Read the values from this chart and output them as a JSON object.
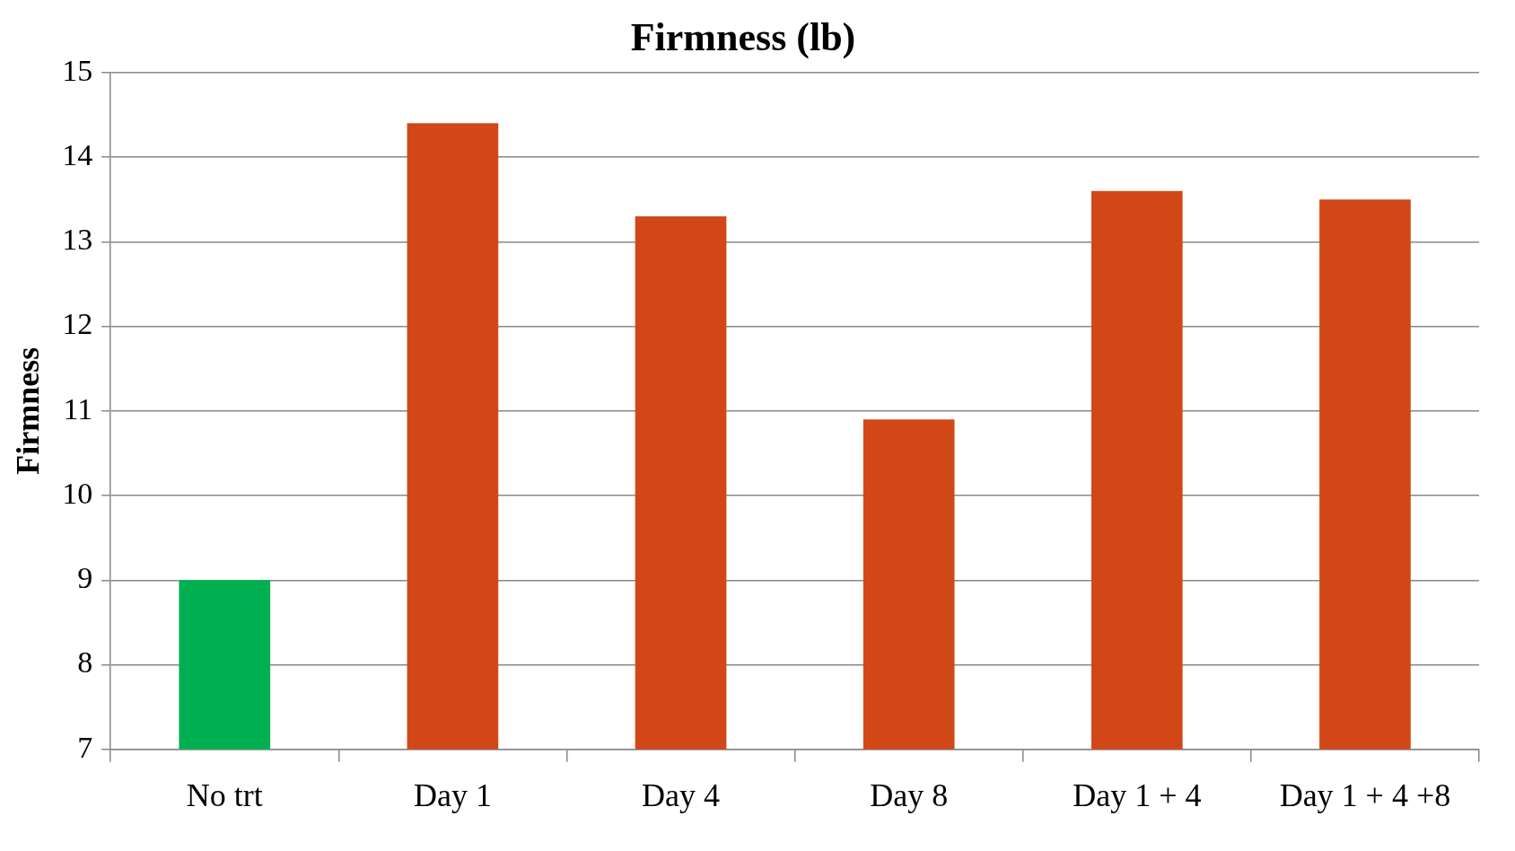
{
  "chart_data": {
    "type": "bar",
    "title": "Firmness (lb)",
    "ylabel": "Firmness",
    "categories": [
      "No trt",
      "Day 1",
      "Day 4",
      "Day 8",
      "Day 1 + 4",
      "Day 1 + 4 +8"
    ],
    "values": [
      9.0,
      14.4,
      13.3,
      10.9,
      13.6,
      13.5
    ],
    "colors": [
      "#00b050",
      "#d24717",
      "#d24717",
      "#d24717",
      "#d24717",
      "#d24717"
    ],
    "ylim": [
      7,
      15
    ],
    "yticks": [
      7,
      8,
      9,
      10,
      11,
      12,
      13,
      14,
      15
    ],
    "grid": "y",
    "legend": false
  }
}
